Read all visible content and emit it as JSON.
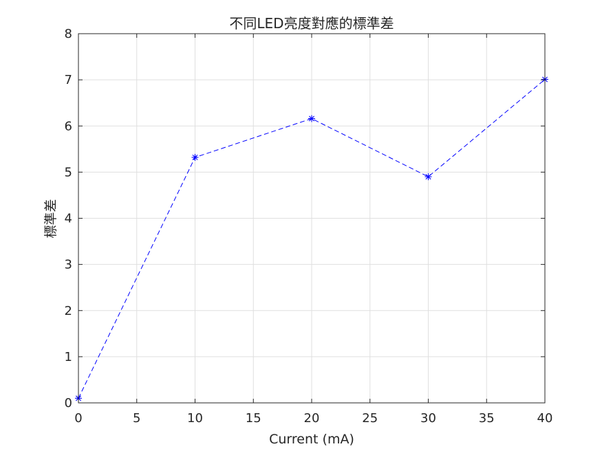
{
  "chart_data": {
    "type": "line",
    "title": "不同LED亮度對應的標準差",
    "xlabel": "Current (mA)",
    "ylabel": "標準差",
    "xlim": [
      0,
      40
    ],
    "ylim": [
      0,
      8
    ],
    "xticks": [
      0,
      5,
      10,
      15,
      20,
      25,
      30,
      35,
      40
    ],
    "yticks": [
      0,
      1,
      2,
      3,
      4,
      5,
      6,
      7,
      8
    ],
    "grid": true,
    "series": [
      {
        "x": [
          0,
          10,
          20,
          30,
          40
        ],
        "y": [
          0.1,
          5.32,
          6.16,
          4.9,
          7.01
        ],
        "color": "#0000ff",
        "line_style": "dashed",
        "marker": "asterisk"
      }
    ]
  }
}
